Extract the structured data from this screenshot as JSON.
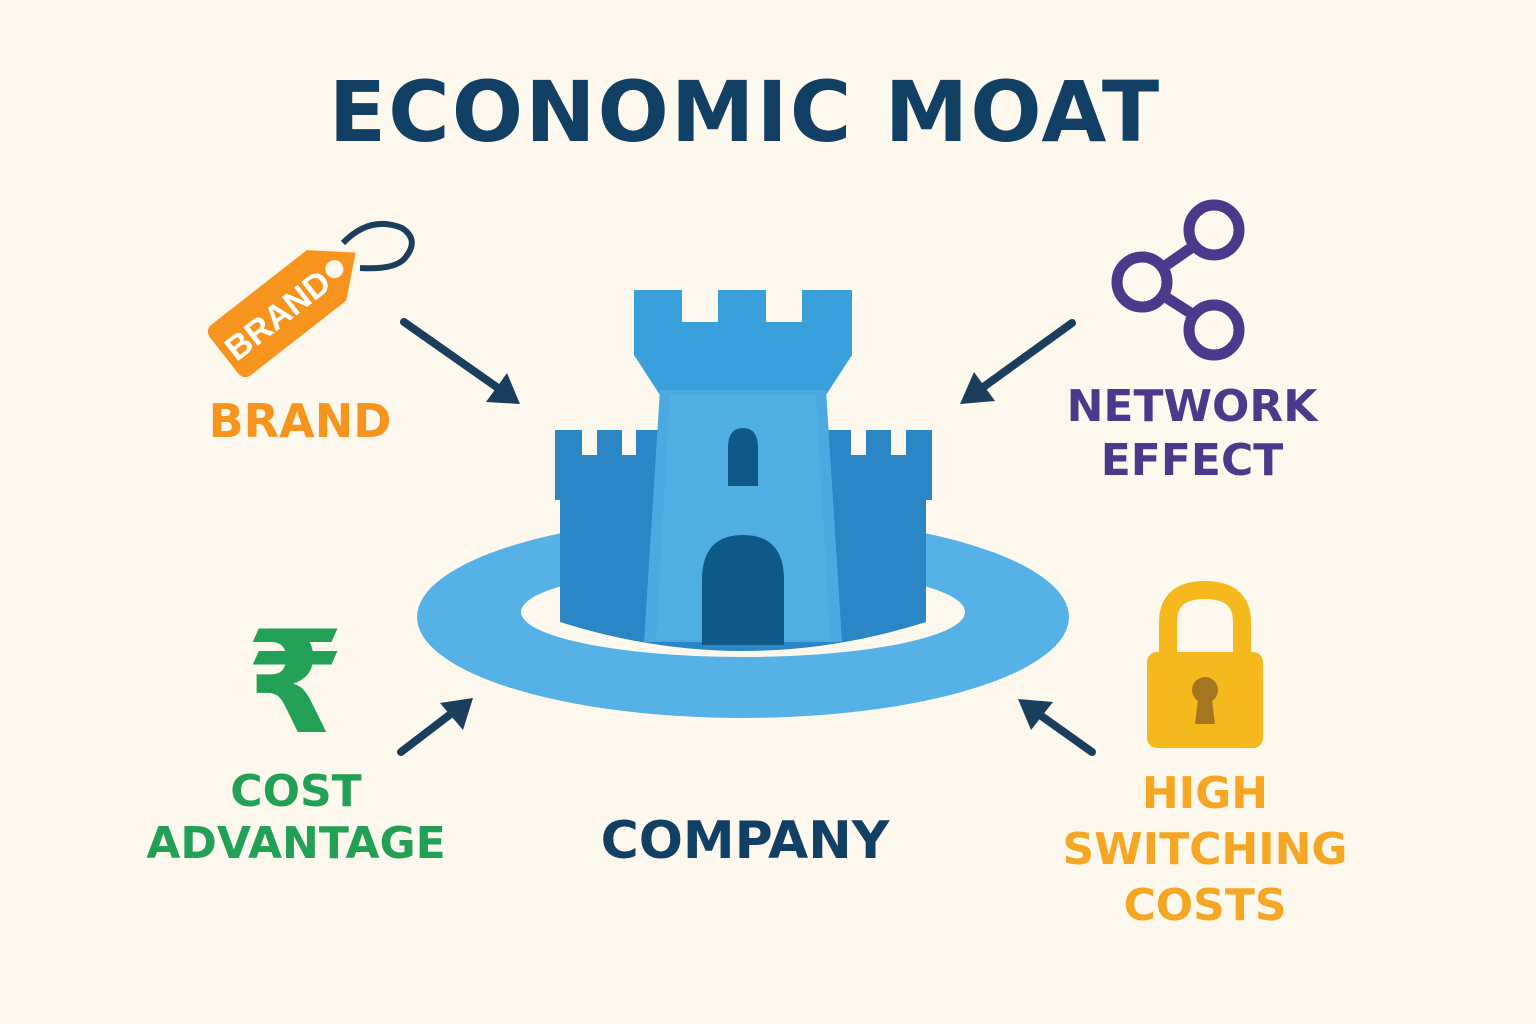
{
  "title": "ECONOMIC MOAT",
  "center": {
    "label": "COMPANY",
    "color": "#123F64"
  },
  "factors": [
    {
      "id": "brand",
      "label_lines": [
        "BRAND"
      ],
      "icon": "price-tag-icon",
      "icon_text": "BRAND",
      "color": "#F7941D"
    },
    {
      "id": "network",
      "label_lines": [
        "NETWORK",
        "EFFECT"
      ],
      "icon": "share-network-icon",
      "color": "#4B3A8C"
    },
    {
      "id": "cost",
      "label_lines": [
        "COST",
        "ADVANTAGE"
      ],
      "icon": "rupee-icon",
      "icon_text": "₹",
      "color": "#22A055"
    },
    {
      "id": "switching",
      "label_lines": [
        "HIGH",
        "SWITCHING",
        "COSTS"
      ],
      "icon": "padlock-icon",
      "color": "#F5A623"
    }
  ],
  "colors": {
    "background": "#FDF8EE",
    "title": "#123F64",
    "arrow": "#1A3E5C",
    "castle_light": "#4AA9E1",
    "castle_dark": "#2B86C6",
    "moat": "#56B2E6",
    "door": "#0E5A86"
  }
}
